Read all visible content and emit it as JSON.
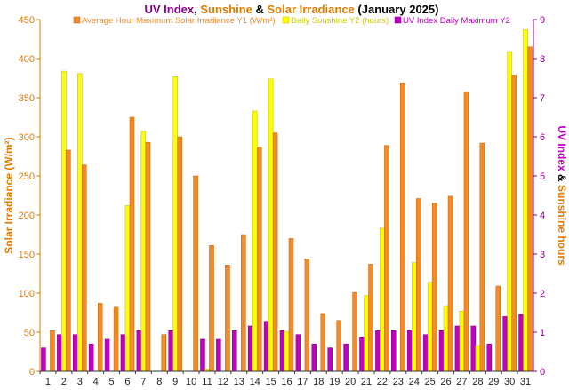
{
  "chart_data": {
    "type": "bar",
    "title_segments": [
      {
        "text": "UV Index",
        "color": "#8B008B"
      },
      {
        "text": ", ",
        "color": "#000000"
      },
      {
        "text": "Sunshine",
        "color": "#E07B00"
      },
      {
        "text": " & ",
        "color": "#000000"
      },
      {
        "text": "Solar Irradiance",
        "color": "#E07B00"
      },
      {
        "text": " (January 2025)",
        "color": "#000000"
      }
    ],
    "ylabel_left": "Solar Irradiance (W/m²)",
    "ylabel_right_segments": [
      {
        "text": "UV Index",
        "color": "#C000C0"
      },
      {
        "text": " & ",
        "color": "#000000"
      },
      {
        "text": "Sunshine hours",
        "color": "#E07B00"
      }
    ],
    "ylim_left": [
      0,
      450
    ],
    "ylim_right": [
      0,
      9
    ],
    "yticks_left": [
      0,
      50,
      100,
      150,
      200,
      250,
      300,
      350,
      400,
      450
    ],
    "yticks_right": [
      0,
      1,
      2,
      3,
      4,
      5,
      6,
      7,
      8,
      9
    ],
    "categories": [
      "1",
      "2",
      "3",
      "4",
      "5",
      "6",
      "7",
      "8",
      "9",
      "10",
      "11",
      "12",
      "13",
      "14",
      "15",
      "16",
      "17",
      "18",
      "19",
      "20",
      "21",
      "22",
      "23",
      "24",
      "25",
      "26",
      "27",
      "28",
      "29",
      "30",
      "31"
    ],
    "legend_position": "top",
    "series": [
      {
        "name": "Average Hour Maximum Solar Irradiance Y1 (W/m²)",
        "axis": "left",
        "color": "#F28C28",
        "stroke": "#C06000",
        "values": [
          52,
          283,
          264,
          87,
          82,
          325,
          293,
          47,
          300,
          250,
          161,
          136,
          175,
          287,
          305,
          170,
          144,
          74,
          65,
          101,
          137,
          289,
          369,
          221,
          215,
          224,
          357,
          292,
          109,
          379,
          415
        ]
      },
      {
        "name": "Daily Sunshine Y2 (hours)",
        "axis": "right",
        "color": "#FFFF00",
        "stroke": "#B8B800",
        "values": [
          0,
          7.68,
          7.62,
          0,
          0,
          4.24,
          6.14,
          0,
          7.54,
          0,
          0.06,
          0,
          0,
          6.66,
          7.48,
          1.02,
          0,
          0,
          0,
          0,
          1.94,
          3.66,
          0,
          2.78,
          2.28,
          1.68,
          1.54,
          0.66,
          0,
          8.18,
          8.74
        ]
      },
      {
        "name": "UV Index Daily Maximum Y2",
        "axis": "right",
        "color": "#C000C0",
        "stroke": "#800080",
        "values": [
          0.6,
          0.94,
          0.94,
          0.7,
          0.82,
          0.94,
          1.04,
          0,
          1.04,
          0,
          0.82,
          0.82,
          1.04,
          1.16,
          1.28,
          1.04,
          0.94,
          0.7,
          0.6,
          0.7,
          0.88,
          1.04,
          1.04,
          1.04,
          0.94,
          1.04,
          1.16,
          1.16,
          0.7,
          1.4,
          1.46
        ]
      }
    ]
  }
}
